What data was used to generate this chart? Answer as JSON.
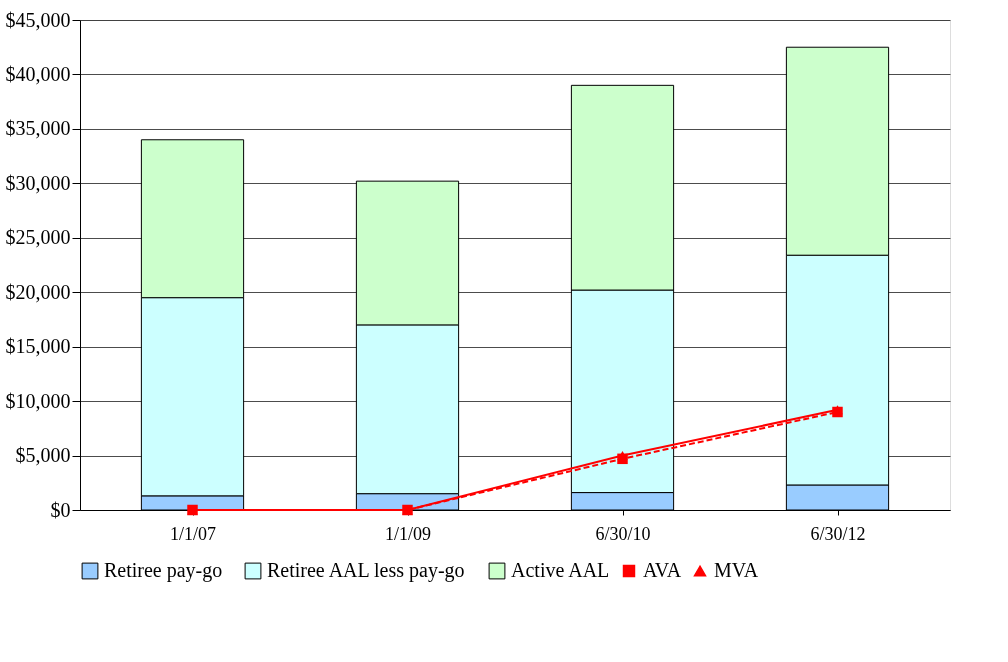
{
  "chart_data": {
    "type": "bar",
    "stacked": true,
    "categories": [
      "1/1/07",
      "1/1/09",
      "6/30/10",
      "6/30/12"
    ],
    "series": [
      {
        "name": "Retiree pay-go",
        "color": "#99ccff",
        "values": [
          1300,
          1500,
          1600,
          2300
        ]
      },
      {
        "name": "Retiree AAL less pay-go",
        "color": "#ccffff",
        "values": [
          18200,
          15500,
          18600,
          21100
        ]
      },
      {
        "name": "Active AAL",
        "color": "#ccffcc",
        "values": [
          14500,
          13200,
          18800,
          19100
        ]
      },
      {
        "name": "AVA",
        "type": "line",
        "color": "#ff0000",
        "marker": "square",
        "line_style": "dashed",
        "values": [
          0,
          0,
          4700,
          9000
        ]
      },
      {
        "name": "MVA",
        "type": "line",
        "color": "#ff0000",
        "marker": "triangle",
        "line_style": "solid",
        "values": [
          0,
          0,
          5000,
          9200
        ]
      }
    ],
    "ylim": [
      0,
      45000
    ],
    "yticks": [
      {
        "value": 0,
        "label": "$0"
      },
      {
        "value": 5000,
        "label": "$5,000"
      },
      {
        "value": 10000,
        "label": "$10,000"
      },
      {
        "value": 15000,
        "label": "$15,000"
      },
      {
        "value": 20000,
        "label": "$20,000"
      },
      {
        "value": 25000,
        "label": "$25,000"
      },
      {
        "value": 30000,
        "label": "$30,000"
      },
      {
        "value": 35000,
        "label": "$35,000"
      },
      {
        "value": 40000,
        "label": "$40,000"
      },
      {
        "value": 45000,
        "label": "$45,000"
      }
    ],
    "grid": "y",
    "legend": "bottom"
  }
}
